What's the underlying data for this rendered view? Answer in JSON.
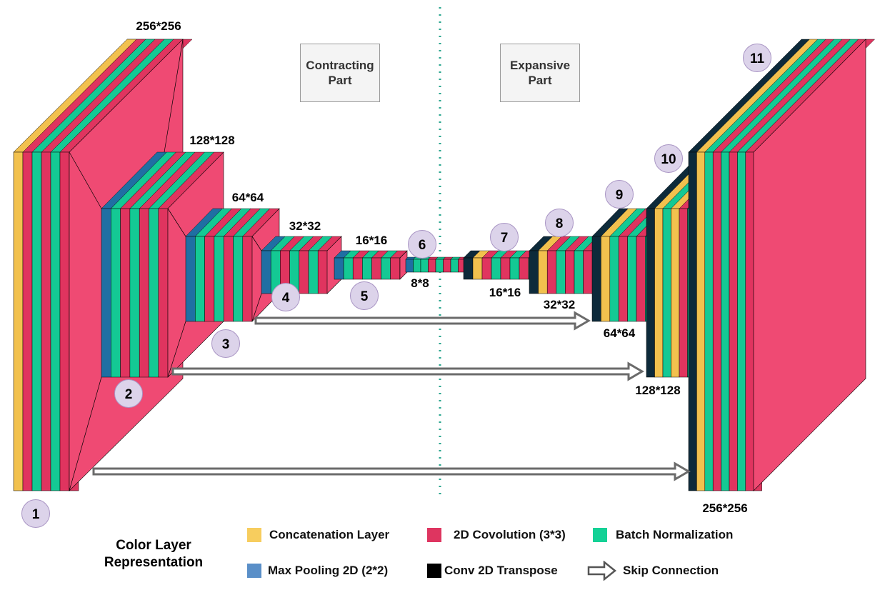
{
  "parts": {
    "contracting": "Contracting\nPart",
    "expansive": "Expansive\nPart"
  },
  "dims": {
    "d1": "256*256",
    "d2": "128*128",
    "d3": "64*64",
    "d4": "32*32",
    "d5": "16*16",
    "d6": "8*8",
    "d7": "16*16",
    "d8": "32*32",
    "d9": "64*64",
    "d10": "128*128",
    "d11": "256*256"
  },
  "stages": [
    "1",
    "2",
    "3",
    "4",
    "5",
    "6",
    "7",
    "8",
    "9",
    "10",
    "11"
  ],
  "legend": {
    "title": "Color Layer\nRepresentation",
    "concat": "Concatenation Layer",
    "conv": "2D Covolution (3*3)",
    "bn": "Batch Normalization",
    "pool": "Max Pooling 2D (2*2)",
    "transpose": "Conv 2D Transpose",
    "skip": "Skip Connection"
  },
  "colors": {
    "concat": "#f2c14e",
    "conv": "#e0345f",
    "bn": "#14c994",
    "pool": "#1f6fa3",
    "transpose": "#0d2a3a",
    "block": "#ef4a73",
    "stage_circle": "#dcd3ea",
    "legend_pool": "#5a8fc8",
    "legend_transpose": "#000000",
    "legend_concat": "#f7cd5e",
    "legend_conv": "#de3560",
    "legend_bn": "#14d196"
  }
}
